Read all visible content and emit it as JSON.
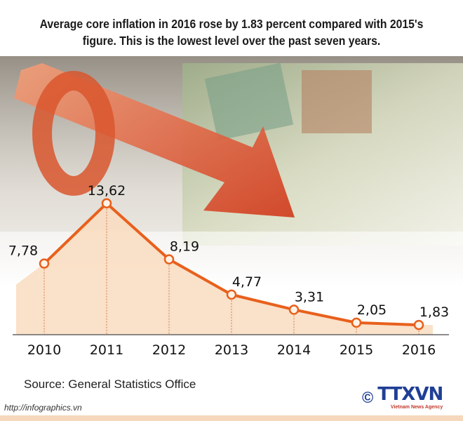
{
  "title": "Average core inflation in 2016 rose by 1.83 percent compared with 2015's figure. This is the lowest level over the past seven years.",
  "source": "Source: General Statistics Office",
  "url": "http://infographics.vn",
  "logo": {
    "copyright": "©",
    "name": "TTXVN",
    "subtitle": "Vietnam News Agency"
  },
  "colors": {
    "line": "#e8601c",
    "fill": "#f9dcc0",
    "logo": "#1f3f95"
  },
  "chart_data": {
    "type": "line",
    "title": "",
    "xlabel": "",
    "ylabel": "",
    "categories": [
      "2010",
      "2011",
      "2012",
      "2013",
      "2014",
      "2015",
      "2016"
    ],
    "values": [
      7.78,
      13.62,
      8.19,
      4.77,
      3.31,
      2.05,
      1.83
    ],
    "data_labels": [
      "7,78",
      "13,62",
      "8,19",
      "4,77",
      "3,31",
      "2,05",
      "1,83"
    ],
    "grid": false,
    "legend": "none"
  }
}
